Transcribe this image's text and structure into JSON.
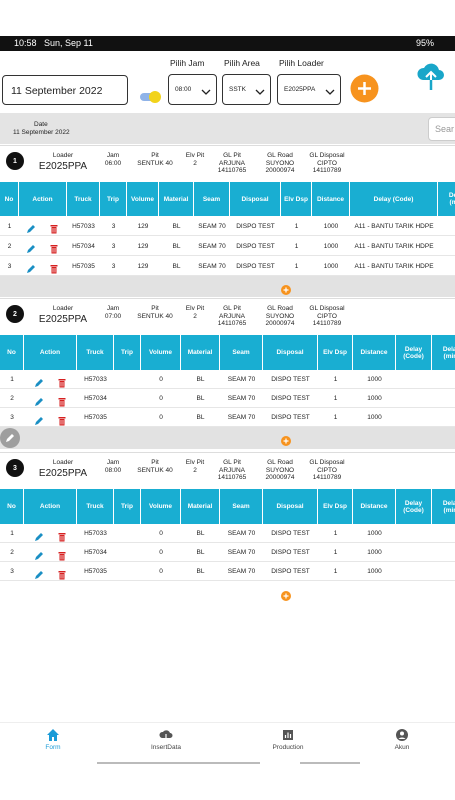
{
  "status_bar": {
    "time": "10:58",
    "date": "Sun, Sep 11",
    "battery": "95%"
  },
  "header": {
    "date": "11 September 2022",
    "hour_label": "Pilih Jam",
    "hour": "08:00",
    "area_label": "Pilih Area",
    "area": "SSTK",
    "loader_label": "Pilih Loader",
    "loader": "E2025PPA"
  },
  "filter": {
    "date_label": "Date",
    "date": "11 September 2022",
    "search_placeholder": "Sear"
  },
  "cards": [
    {
      "number": "1",
      "info": [
        {
          "label": "Loader",
          "value": [
            "E2025PPA"
          ]
        },
        {
          "label": "Jam",
          "value": [
            "06:00"
          ]
        },
        {
          "label": "Pit",
          "value": [
            "SENTUK 40"
          ]
        },
        {
          "label": "Elv Pit",
          "value": [
            "2"
          ]
        },
        {
          "label": "GL Pit",
          "value": [
            "ARJUNA",
            "14110765"
          ]
        },
        {
          "label": "GL Road",
          "value": [
            "SUYONO",
            "20000974"
          ]
        },
        {
          "label": "GL Disposal",
          "value": [
            "CIPTO",
            "14110789"
          ]
        }
      ],
      "columns": [
        "No",
        "Action",
        "Truck",
        "Trip",
        "Volume",
        "Material",
        "Seam",
        "Disposal",
        "Elv Dsp",
        "Distance",
        "Delay (Code)",
        "Delay (min)"
      ],
      "rows": [
        [
          "1",
          "H57033",
          "3",
          "129",
          "BL",
          "SEAM 70",
          "DISPO TEST",
          "1",
          "1000",
          "A11 - BANTU TARIK HDPE"
        ],
        [
          "2",
          "H57034",
          "3",
          "129",
          "BL",
          "SEAM 70",
          "DISPO TEST",
          "1",
          "1000",
          "A11 - BANTU TARIK HDPE"
        ],
        [
          "3",
          "H57035",
          "3",
          "129",
          "BL",
          "SEAM 70",
          "DISPO TEST",
          "1",
          "1000",
          "A11 - BANTU TARIK HDPE"
        ]
      ]
    },
    {
      "number": "2",
      "info": [
        {
          "label": "Loader",
          "value": [
            "E2025PPA"
          ]
        },
        {
          "label": "Jam",
          "value": [
            "07:00"
          ]
        },
        {
          "label": "Pit",
          "value": [
            "SENTUK 40"
          ]
        },
        {
          "label": "Elv Pit",
          "value": [
            "2"
          ]
        },
        {
          "label": "GL Pit",
          "value": [
            "ARJUNA",
            "14110765"
          ]
        },
        {
          "label": "GL Road",
          "value": [
            "SUYONO",
            "20000974"
          ]
        },
        {
          "label": "GL Disposal",
          "value": [
            "CIPTO",
            "14110789"
          ]
        }
      ],
      "columns": [
        "No",
        "Action",
        "Truck",
        "Trip",
        "Volume",
        "Material",
        "Seam",
        "Disposal",
        "Elv Dsp",
        "Distance",
        "Delay (Code)",
        "Delay (min)"
      ],
      "rows": [
        [
          "1",
          "H57033",
          null,
          "0",
          "BL",
          "SEAM 70",
          "DISPO TEST",
          "1",
          "1000",
          null
        ],
        [
          "2",
          "H57034",
          null,
          "0",
          "BL",
          "SEAM 70",
          "DISPO TEST",
          "1",
          "1000",
          null
        ],
        [
          "3",
          "H57035",
          null,
          "0",
          "BL",
          "SEAM 70",
          "DISPO TEST",
          "1",
          "1000",
          null
        ]
      ]
    },
    {
      "number": "3",
      "info": [
        {
          "label": "Loader",
          "value": [
            "E2025PPA"
          ]
        },
        {
          "label": "Jam",
          "value": [
            "08:00"
          ]
        },
        {
          "label": "Pit",
          "value": [
            "SENTUK 40"
          ]
        },
        {
          "label": "Elv Pit",
          "value": [
            "2"
          ]
        },
        {
          "label": "GL Pit",
          "value": [
            "ARJUNA",
            "14110765"
          ]
        },
        {
          "label": "GL Road",
          "value": [
            "SUYONO",
            "20000974"
          ]
        },
        {
          "label": "GL Disposal",
          "value": [
            "CIPTO",
            "14110789"
          ]
        }
      ],
      "columns": [
        "No",
        "Action",
        "Truck",
        "Trip",
        "Volume",
        "Material",
        "Seam",
        "Disposal",
        "Elv Dsp",
        "Distance",
        "Delay (Code)",
        "Delay (min)"
      ],
      "rows": [
        [
          "1",
          "H57033",
          null,
          "0",
          "BL",
          "SEAM 70",
          "DISPO TEST",
          "1",
          "1000",
          null
        ],
        [
          "2",
          "H57034",
          null,
          "0",
          "BL",
          "SEAM 70",
          "DISPO TEST",
          "1",
          "1000",
          null
        ],
        [
          "3",
          "H57035",
          null,
          "0",
          "BL",
          "SEAM 70",
          "DISPO TEST",
          "1",
          "1000",
          null
        ]
      ]
    }
  ],
  "nav": [
    "Form",
    "InsertData",
    "Production",
    "Akun"
  ]
}
